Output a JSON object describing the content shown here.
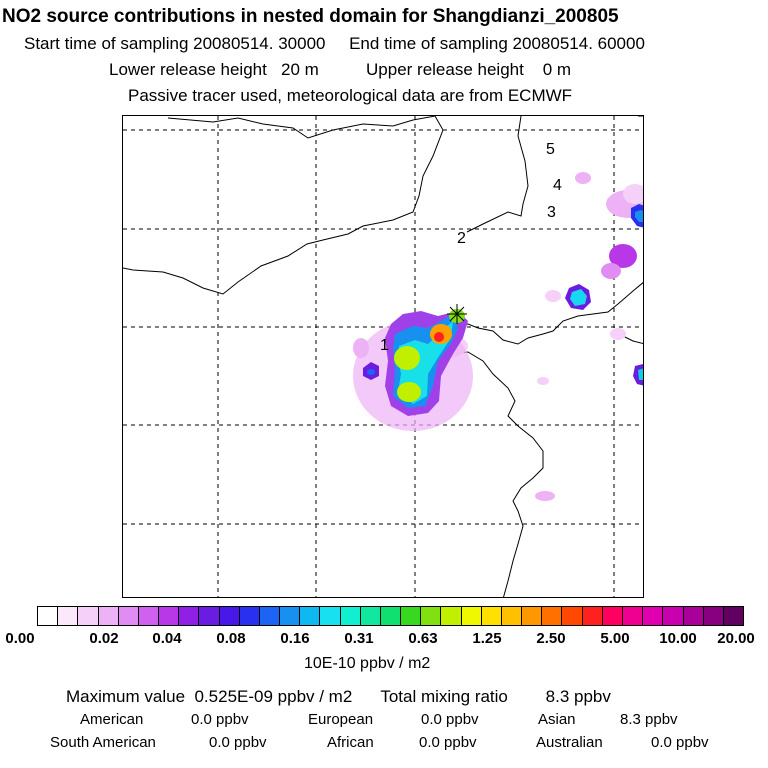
{
  "header": {
    "title": "NO2 source contributions in nested domain for Shangdianzi_200805",
    "line1": "Start time of sampling 20080514. 30000     End time of sampling 20080514. 60000",
    "line2": "Lower release height   20 m          Upper release height    0 m",
    "line3": "Passive tracer used, meteorological data are from ECMWF"
  },
  "map": {
    "markers": [
      {
        "label": "1"
      },
      {
        "label": "2"
      },
      {
        "label": "3"
      },
      {
        "label": "4"
      },
      {
        "label": "5"
      }
    ],
    "receptor_symbol": "receptor-marker"
  },
  "colorbar": {
    "colors": [
      "#ffffff",
      "#fbe8fb",
      "#f5d0f8",
      "#ecb2f5",
      "#e08cf2",
      "#d060ee",
      "#b838e8",
      "#9020e4",
      "#6a1ce0",
      "#4818e8",
      "#2a30f0",
      "#1e64f4",
      "#1890f0",
      "#10b8f0",
      "#18e0f0",
      "#10f0d0",
      "#10e8a0",
      "#10e070",
      "#38d820",
      "#80e010",
      "#c0f000",
      "#f0f800",
      "#ffe000",
      "#ffc000",
      "#ff9800",
      "#ff7000",
      "#ff4800",
      "#ff2020",
      "#ff0060",
      "#f00090",
      "#e000b0",
      "#c800b0",
      "#a80098",
      "#880080",
      "#600060"
    ],
    "ticks": [
      "0.00",
      "0.02",
      "0.04",
      "0.08",
      "0.16",
      "0.31",
      "0.63",
      "1.25",
      "2.50",
      "5.00",
      "10.00",
      "20.00"
    ],
    "unit": "10E-10 ppbv / m2"
  },
  "stats": {
    "max_line": "Maximum value  0.525E-09 ppbv / m2      Total mixing ratio        8.3 ppbv",
    "regions": [
      {
        "name": "American",
        "value": "0.0 ppbv"
      },
      {
        "name": "European",
        "value": "0.0 ppbv"
      },
      {
        "name": "Asian",
        "value": "8.3 ppbv"
      },
      {
        "name": "South American",
        "value": "0.0 ppbv"
      },
      {
        "name": "African",
        "value": "0.0 ppbv"
      },
      {
        "name": "Australian",
        "value": "0.0 ppbv"
      }
    ]
  }
}
